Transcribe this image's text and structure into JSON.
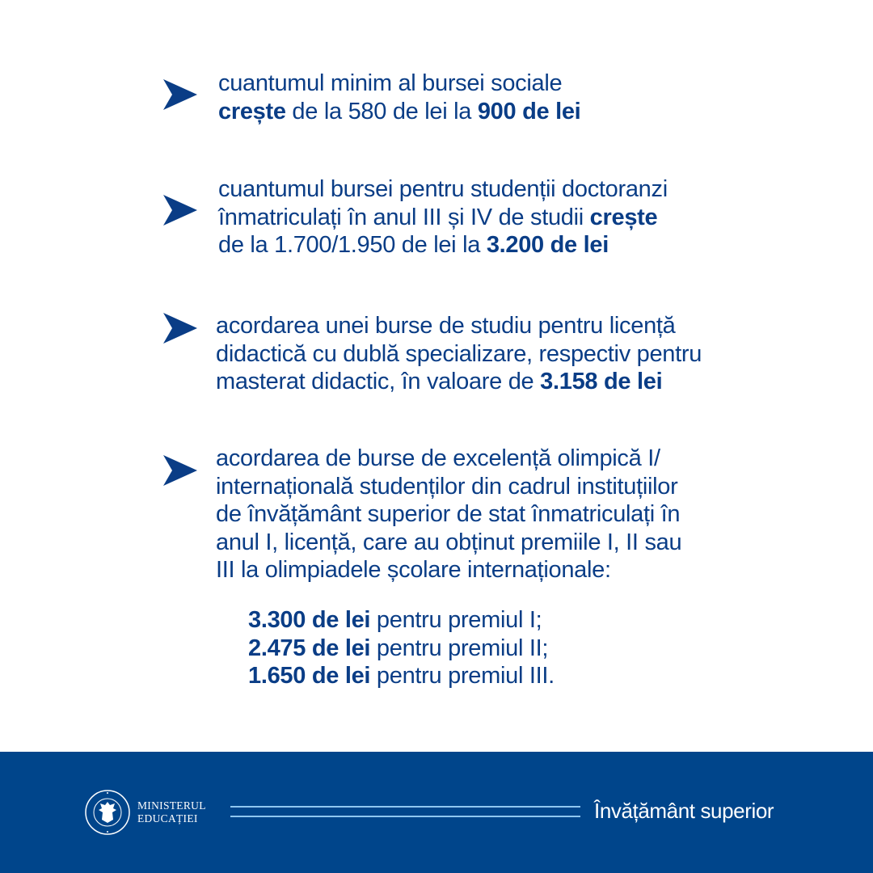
{
  "colors": {
    "text": "#0a3d86",
    "footer_bg": "#00458b",
    "footer_lines": "#8fc6f0"
  },
  "items": [
    {
      "lines": [
        [
          {
            "t": "cuantumul minim al bursei sociale",
            "b": false
          }
        ],
        [
          {
            "t": "crește",
            "b": true
          },
          {
            "t": " de la 580 de lei la ",
            "b": false
          },
          {
            "t": "900 de lei",
            "b": true
          }
        ]
      ]
    },
    {
      "lines": [
        [
          {
            "t": "cuantumul bursei pentru studenții doctoranzi",
            "b": false
          }
        ],
        [
          {
            "t": "înmatriculați în anul III și IV de studii ",
            "b": false
          },
          {
            "t": "crește",
            "b": true
          }
        ],
        [
          {
            "t": "de la 1.700/1.950 de lei la ",
            "b": false
          },
          {
            "t": "3.200 de lei",
            "b": true
          }
        ]
      ]
    },
    {
      "lines": [
        [
          {
            "t": "acordarea unei burse de studiu pentru licență",
            "b": false
          }
        ],
        [
          {
            "t": "didactică cu dublă specializare, respectiv pentru",
            "b": false
          }
        ],
        [
          {
            "t": "masterat didactic, în valoare de ",
            "b": false
          },
          {
            "t": "3.158 de lei",
            "b": true
          }
        ]
      ]
    },
    {
      "lines": [
        [
          {
            "t": "acordarea de burse de excelență olimpică I/",
            "b": false
          }
        ],
        [
          {
            "t": "internațională studenților din cadrul instituțiilor",
            "b": false
          }
        ],
        [
          {
            "t": "de învățământ superior de stat înmatriculați în",
            "b": false
          }
        ],
        [
          {
            "t": "anul I, licență, care au obținut premiile I, II sau",
            "b": false
          }
        ],
        [
          {
            "t": "III la olimpiadele școlare internaționale:",
            "b": false
          }
        ]
      ]
    }
  ],
  "prizes": [
    [
      {
        "t": "3.300 de lei",
        "b": true
      },
      {
        "t": " pentru premiul I;",
        "b": false
      }
    ],
    [
      {
        "t": "2.475 de lei",
        "b": true
      },
      {
        "t": " pentru premiul II;",
        "b": false
      }
    ],
    [
      {
        "t": "1.650 de lei",
        "b": true
      },
      {
        "t": " pentru premiul III.",
        "b": false
      }
    ]
  ],
  "footer": {
    "ministry_line1": "MINISTERUL",
    "ministry_line2": "EDUCAȚIEI",
    "logo_text": "GUVERNUL ROMÂNIEI",
    "section": "Învățământ superior"
  }
}
